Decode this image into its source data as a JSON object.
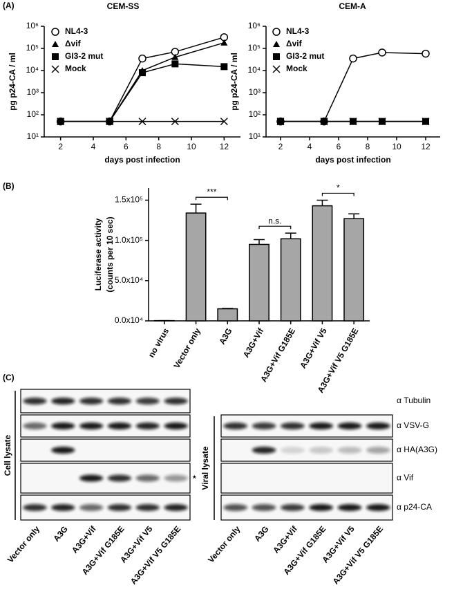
{
  "panel_labels": [
    "(A)",
    "(B)",
    "(C)"
  ],
  "chart_data": [
    {
      "type": "line",
      "title": "CEM-SS",
      "xlabel": "days post infection",
      "ylabel": "pg p24-CA / ml",
      "log_y": true,
      "x": [
        2,
        5,
        7,
        9,
        12
      ],
      "xlim": [
        1,
        13
      ],
      "xticks": [
        2,
        4,
        6,
        8,
        10,
        12
      ],
      "ylim": [
        10,
        1000000
      ],
      "yticks": [
        {
          "value": 10,
          "label": "10¹"
        },
        {
          "value": 100,
          "label": "10²"
        },
        {
          "value": 1000,
          "label": "10³"
        },
        {
          "value": 10000,
          "label": "10⁴"
        },
        {
          "value": 100000,
          "label": "10⁵"
        },
        {
          "value": 1000000,
          "label": "10⁶"
        }
      ],
      "legend": "upper left",
      "series": [
        {
          "name": "NL4-3",
          "marker": "open-circle",
          "color": "#000000",
          "values": [
            50,
            50,
            35000,
            70000,
            320000
          ]
        },
        {
          "name": "Δvif",
          "marker": "triangle",
          "color": "#000000",
          "values": [
            50,
            50,
            10000,
            40000,
            180000
          ]
        },
        {
          "name": "GI3-2 mut",
          "marker": "square",
          "color": "#000000",
          "values": [
            50,
            50,
            8000,
            20000,
            15000
          ]
        },
        {
          "name": "Mock",
          "marker": "cross",
          "color": "#000000",
          "values": [
            50,
            50,
            50,
            50,
            50
          ]
        }
      ]
    },
    {
      "type": "line",
      "title": "CEM-A",
      "xlabel": "days post infection",
      "ylabel": "pg p24-CA / ml",
      "log_y": true,
      "x": [
        2,
        5,
        7,
        9,
        12
      ],
      "xlim": [
        1,
        13
      ],
      "xticks": [
        2,
        4,
        6,
        8,
        10,
        12
      ],
      "ylim": [
        10,
        1000000
      ],
      "yticks": [
        {
          "value": 10,
          "label": "10¹"
        },
        {
          "value": 100,
          "label": "10²"
        },
        {
          "value": 1000,
          "label": "10³"
        },
        {
          "value": 10000,
          "label": "10⁴"
        },
        {
          "value": 100000,
          "label": "10⁵"
        },
        {
          "value": 1000000,
          "label": "10⁶"
        }
      ],
      "legend": "upper left",
      "series": [
        {
          "name": "NL4-3",
          "marker": "open-circle",
          "color": "#000000",
          "values": [
            50,
            50,
            35000,
            65000,
            58000
          ]
        },
        {
          "name": "Δvif",
          "marker": "triangle",
          "color": "#000000",
          "values": [
            50,
            50,
            50,
            50,
            50
          ]
        },
        {
          "name": "GI3-2 mut",
          "marker": "square",
          "color": "#000000",
          "values": [
            50,
            50,
            50,
            50,
            50
          ]
        },
        {
          "name": "Mock",
          "marker": "cross",
          "color": "#000000",
          "values": [
            50,
            50,
            50,
            50,
            50
          ]
        }
      ]
    },
    {
      "type": "bar",
      "ylabel": [
        "Luciferase activity",
        "(counts per 10 sec)"
      ],
      "categories": [
        "no virus",
        "Vector only",
        "A3G",
        "A3G+Vif",
        "A3G+Vif G185E",
        "A3G+Vif V5",
        "A3G+Vif V5 G185E"
      ],
      "values": [
        300,
        134000,
        15000,
        95000,
        102000,
        143000,
        127000
      ],
      "errors": [
        0,
        11000,
        500,
        6000,
        7000,
        7000,
        6000
      ],
      "color": "#a6a6a6",
      "ylim": [
        0,
        165000
      ],
      "yticks": [
        {
          "value": 0,
          "label": "0.0x10⁴"
        },
        {
          "value": 50000,
          "label": "5.0x10⁴"
        },
        {
          "value": 100000,
          "label": "1.0x10⁵"
        },
        {
          "value": 150000,
          "label": "1.5x10⁵"
        }
      ],
      "annotations": [
        {
          "text": "***",
          "between": [
            "Vector only",
            "A3G"
          ]
        },
        {
          "text": "n.s.",
          "between": [
            "A3G+Vif",
            "A3G+Vif G185E"
          ]
        },
        {
          "text": "*",
          "between": [
            "A3G+Vif V5",
            "A3G+Vif V5 G185E"
          ]
        }
      ]
    }
  ],
  "blot": {
    "groups": [
      "Cell lysate",
      "Viral lysate"
    ],
    "rows": [
      "α Tubulin",
      "α VSV-G",
      "α HA(A3G)",
      "α Vif",
      "α p24-CA"
    ],
    "lanes": [
      "Vector only",
      "A3G",
      "A3G+Vif",
      "A3G+Vif G185E",
      "A3G+Vif V5",
      "A3G+Vif V5 G185E"
    ],
    "marker": "*"
  }
}
